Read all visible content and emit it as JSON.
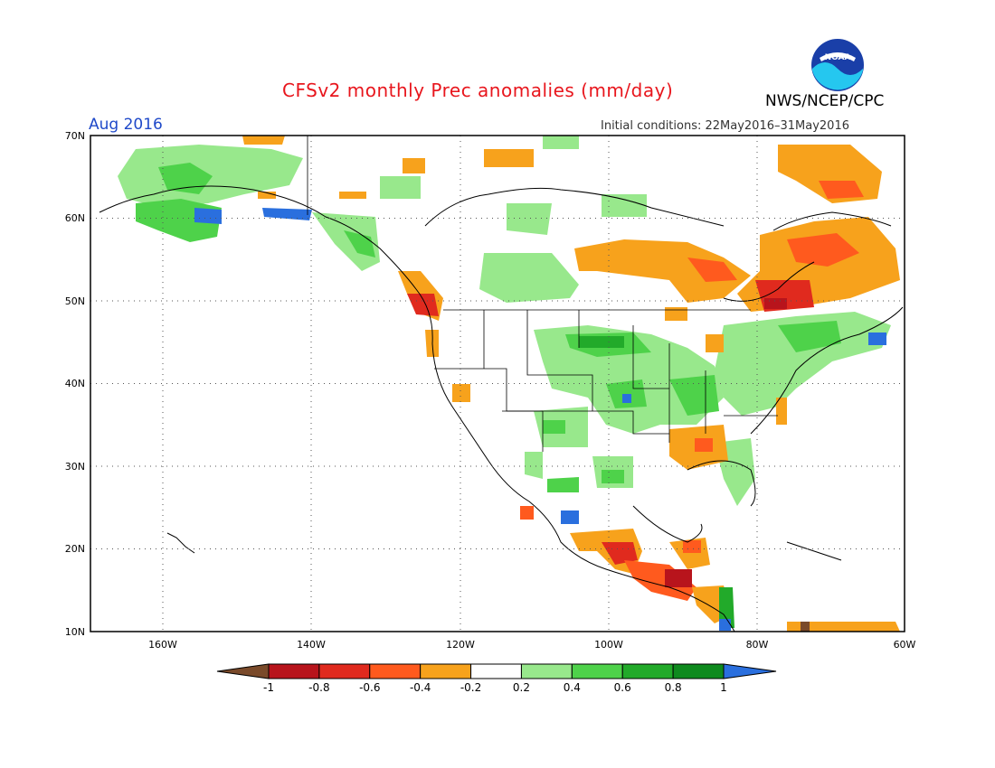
{
  "header": {
    "title": "CFSv2 monthly Prec anomalies (mm/day)",
    "target_month": "Aug 2016",
    "initial_conditions": "Initial conditions: 22May2016–31May2016",
    "agency": "NWS/NCEP/CPC",
    "logo_text": "NOAA"
  },
  "axes": {
    "lat_labels": [
      "70N",
      "60N",
      "50N",
      "40N",
      "30N",
      "20N",
      "10N"
    ],
    "lon_labels": [
      "160W",
      "140W",
      "120W",
      "100W",
      "80W",
      "60W"
    ]
  },
  "colorbar": {
    "labels": [
      "-1",
      "-0.8",
      "-0.6",
      "-0.4",
      "-0.2",
      "0.2",
      "0.4",
      "0.6",
      "0.8",
      "1"
    ],
    "colors": [
      "#7a4a2a",
      "#b8141c",
      "#e02a1e",
      "#ff5a1e",
      "#f7a21c",
      "#ffffff",
      "#98e88c",
      "#4ed24a",
      "#22aa2a",
      "#0e8a1e",
      "#2a6fde"
    ]
  },
  "colors": {
    "title": "#e8161d",
    "month": "#1f49c9",
    "frame": "#000000"
  }
}
